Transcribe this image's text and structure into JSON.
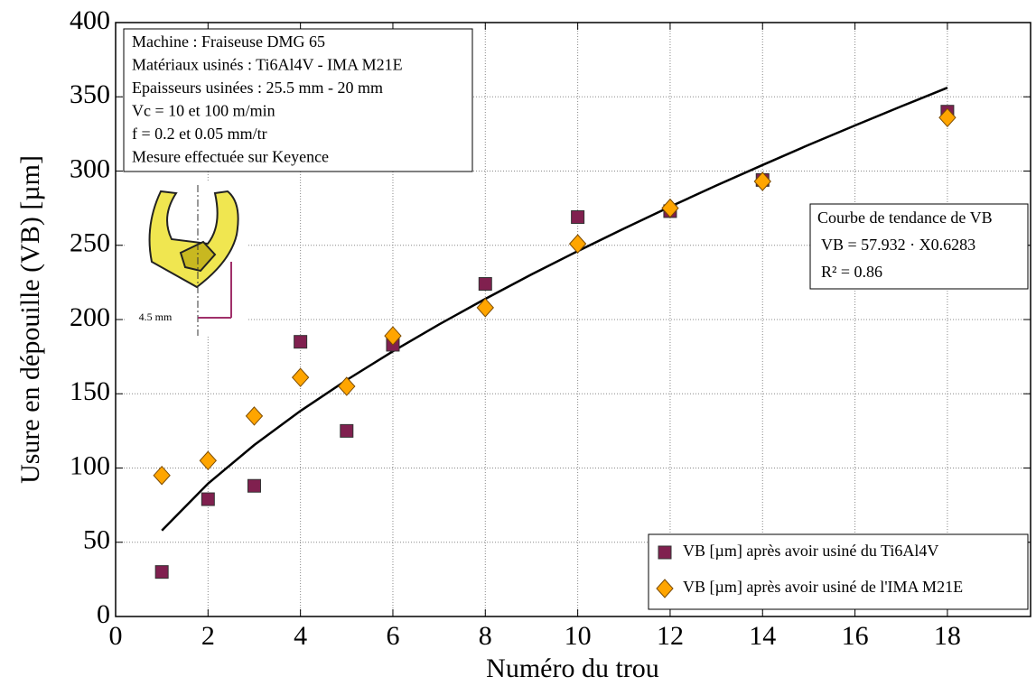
{
  "chart_data": {
    "type": "scatter",
    "xlabel": "Numéro du trou",
    "ylabel": "Usure en dépouille (VB) [µm]",
    "xlim": [
      0,
      19.8
    ],
    "xticks": [
      0,
      2,
      4,
      6,
      8,
      10,
      12,
      14,
      16,
      18
    ],
    "ylim": [
      0,
      400
    ],
    "yticks": [
      0,
      50,
      100,
      150,
      200,
      250,
      300,
      350,
      400
    ],
    "grid": true,
    "legend": "lower right",
    "series": [
      {
        "name": "VB [µm] après avoir usiné du Ti6Al4V",
        "marker": "square",
        "color": "#80204f",
        "x": [
          1,
          2,
          3,
          4,
          5,
          6,
          8,
          10,
          12,
          14,
          18
        ],
        "values": [
          30,
          79,
          88,
          185,
          125,
          183,
          224,
          269,
          273,
          294,
          340
        ]
      },
      {
        "name": "VB [µm] après avoir usiné de l'IMA M21E",
        "marker": "diamond",
        "color": "#ffa500",
        "x": [
          1,
          2,
          3,
          4,
          5,
          6,
          8,
          10,
          12,
          14,
          18
        ],
        "values": [
          95,
          105,
          135,
          161,
          155,
          189,
          208,
          251,
          275,
          293,
          336
        ]
      }
    ],
    "trend": {
      "color": "#000000",
      "x": [
        1,
        2,
        3,
        4,
        5,
        6,
        7,
        8,
        9,
        10,
        11,
        12,
        13,
        14,
        15,
        16,
        17,
        18
      ],
      "values": [
        57.9,
        89.5,
        115.5,
        138.4,
        159.3,
        178.6,
        196.7,
        213.9,
        230.4,
        246.1,
        261.3,
        276.0,
        290.3,
        304.1,
        317.6,
        330.7,
        343.5,
        356.1
      ]
    },
    "info_box": [
      "Machine : Fraiseuse DMG 65",
      "Matériaux usinés : Ti6Al4V - IMA M21E",
      "Epaisseurs usinées : 25.5 mm - 20 mm",
      "Vc = 10 et 100 m/min",
      "f = 0.2 et 0.05 mm/tr",
      "Mesure effectuée sur Keyence"
    ],
    "trend_box": [
      "Courbe de tendance de VB",
      "VB = 57.932 · X0.6283",
      "R² = 0.86"
    ],
    "drill_label": "4.5 mm"
  }
}
